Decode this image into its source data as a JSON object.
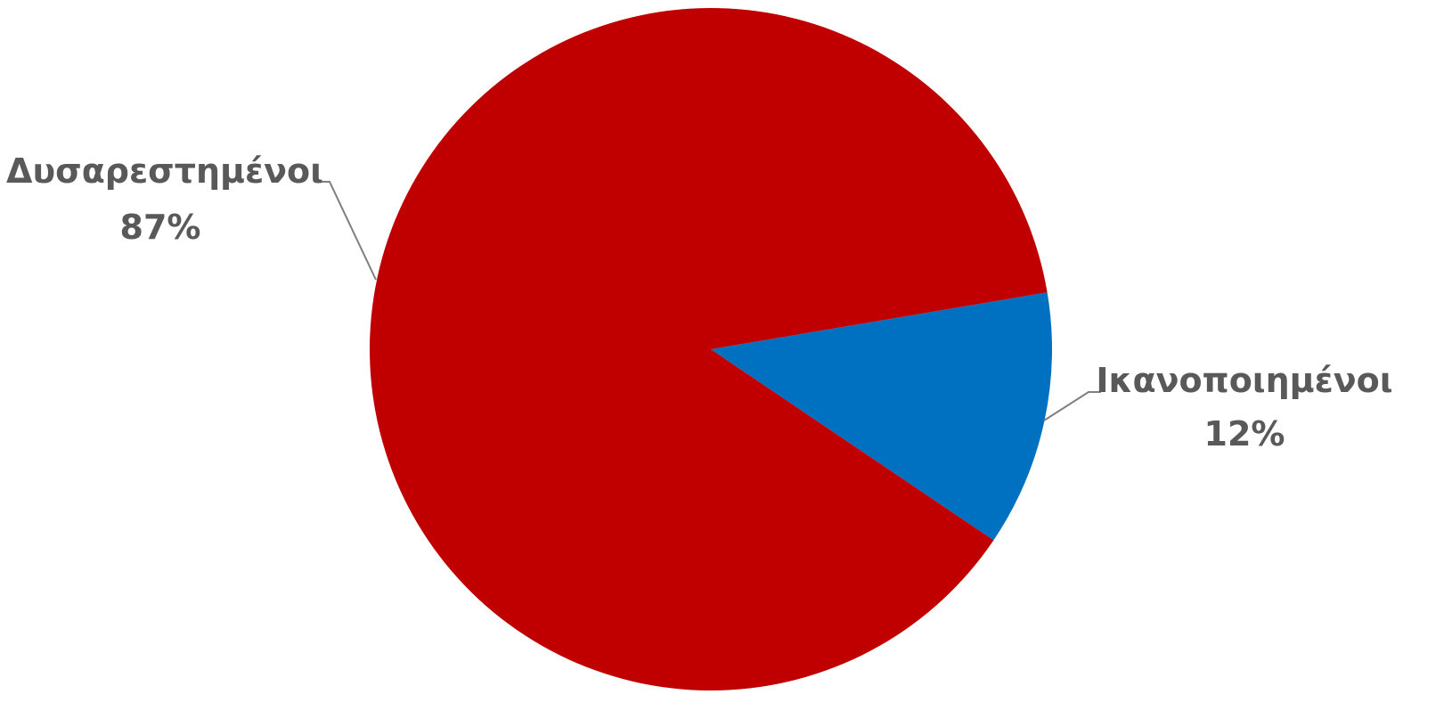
{
  "chart_data": {
    "type": "pie",
    "title": "",
    "legend": "none",
    "slices": [
      {
        "label": "Ικανοποιημένοι",
        "value": 12,
        "percent_label": "12%",
        "color": "#0070C0"
      },
      {
        "label": "Δυσαρεστημένοι",
        "value": 87,
        "percent_label": "87%",
        "color": "#C00000"
      }
    ],
    "label_color": "#595959",
    "leader_line_color": "#7F7F7F"
  }
}
